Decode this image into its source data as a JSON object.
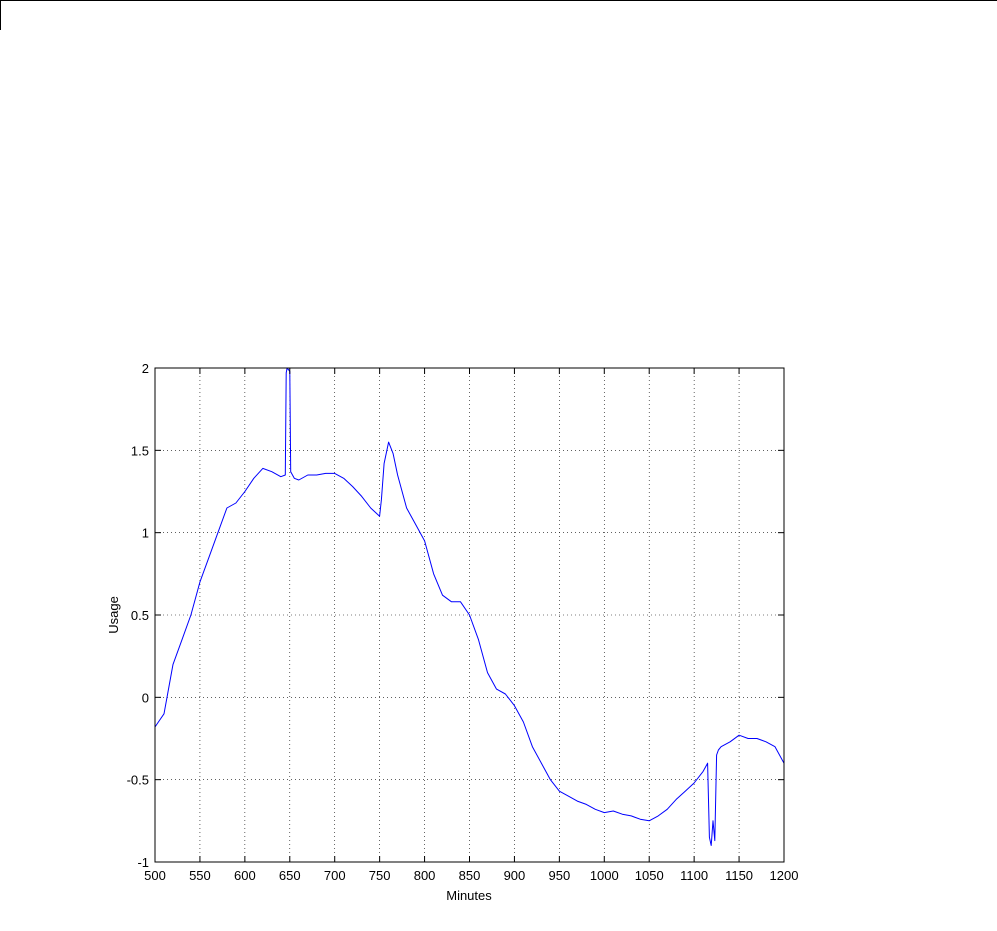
{
  "chart_data": {
    "type": "line",
    "title": "",
    "xlabel": "Minutes",
    "ylabel": "Usage",
    "xlim": [
      500,
      1200
    ],
    "ylim": [
      -1,
      2
    ],
    "xticks": [
      500,
      550,
      600,
      650,
      700,
      750,
      800,
      850,
      900,
      950,
      1000,
      1050,
      1100,
      1150,
      1200
    ],
    "yticks": [
      -1,
      -0.5,
      0,
      0.5,
      1,
      1.5,
      2
    ],
    "xtick_labels": [
      "500",
      "550",
      "600",
      "650",
      "700",
      "750",
      "800",
      "850",
      "900",
      "950",
      "1000",
      "1050",
      "1100",
      "1150",
      "1200"
    ],
    "ytick_labels": [
      "-1",
      "-0.5",
      "0",
      "0.5",
      "1",
      "1.5",
      "2"
    ],
    "grid": true,
    "series": [
      {
        "color": "#0000ff",
        "x": [
          500,
          505,
          510,
          515,
          520,
          530,
          540,
          550,
          560,
          570,
          580,
          590,
          600,
          610,
          620,
          630,
          640,
          645,
          646,
          647,
          650,
          651,
          655,
          660,
          670,
          680,
          690,
          700,
          710,
          720,
          730,
          740,
          750,
          752,
          755,
          760,
          765,
          770,
          780,
          790,
          800,
          810,
          820,
          830,
          840,
          850,
          860,
          870,
          880,
          890,
          900,
          910,
          920,
          930,
          940,
          950,
          960,
          970,
          980,
          990,
          1000,
          1010,
          1020,
          1030,
          1040,
          1050,
          1060,
          1070,
          1080,
          1090,
          1100,
          1110,
          1115,
          1117,
          1119,
          1121,
          1123,
          1125,
          1127,
          1130,
          1140,
          1150,
          1160,
          1170,
          1180,
          1190,
          1200
        ],
        "y": [
          -0.18,
          -0.14,
          -0.1,
          0.05,
          0.2,
          0.35,
          0.5,
          0.7,
          0.85,
          1.0,
          1.15,
          1.18,
          1.25,
          1.33,
          1.39,
          1.37,
          1.34,
          1.35,
          1.97,
          2.0,
          1.98,
          1.37,
          1.33,
          1.32,
          1.35,
          1.35,
          1.36,
          1.36,
          1.33,
          1.28,
          1.22,
          1.15,
          1.1,
          1.2,
          1.42,
          1.55,
          1.48,
          1.35,
          1.15,
          1.05,
          0.95,
          0.75,
          0.62,
          0.58,
          0.58,
          0.5,
          0.35,
          0.15,
          0.05,
          0.02,
          -0.05,
          -0.15,
          -0.3,
          -0.4,
          -0.5,
          -0.57,
          -0.6,
          -0.63,
          -0.65,
          -0.68,
          -0.7,
          -0.69,
          -0.71,
          -0.72,
          -0.74,
          -0.75,
          -0.72,
          -0.68,
          -0.62,
          -0.57,
          -0.52,
          -0.45,
          -0.4,
          -0.85,
          -0.9,
          -0.75,
          -0.87,
          -0.35,
          -0.32,
          -0.3,
          -0.27,
          -0.23,
          -0.25,
          -0.25,
          -0.27,
          -0.3,
          -0.4
        ]
      }
    ]
  }
}
